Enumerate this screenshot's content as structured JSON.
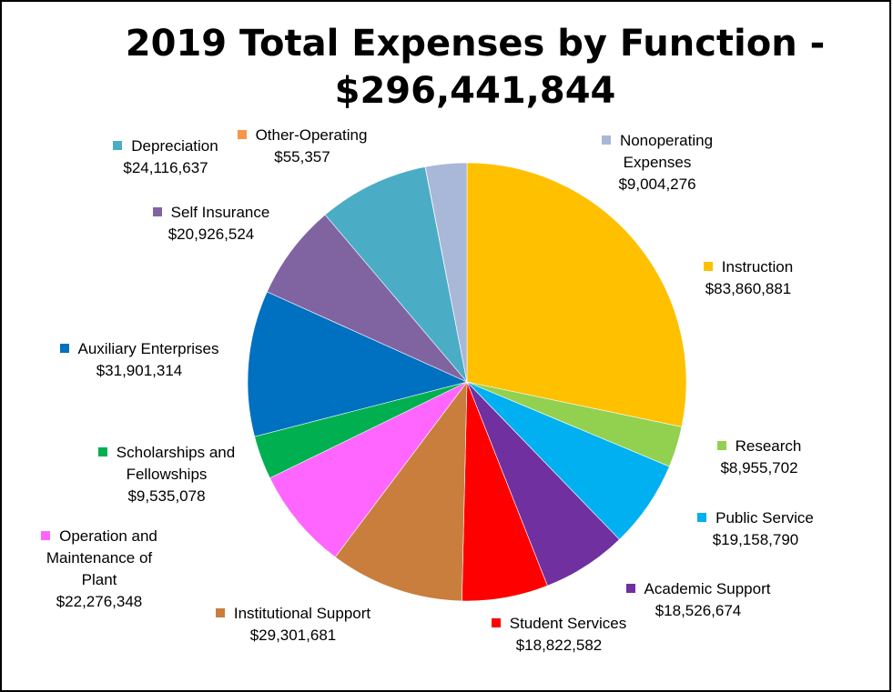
{
  "chart_data": {
    "type": "pie",
    "title_line1": "2019 Total Expenses by Function -",
    "title_line2": "$296,441,844",
    "start_angle_deg": 0,
    "direction": "clockwise",
    "slices": [
      {
        "name": "Instruction",
        "value": 83860881,
        "value_label": "$83,860,881",
        "color": "#FFC000"
      },
      {
        "name": "Research",
        "value": 8955702,
        "value_label": "$8,955,702",
        "color": "#92D050"
      },
      {
        "name": "Public Service",
        "value": 19158790,
        "value_label": "$19,158,790",
        "color": "#00B0F0"
      },
      {
        "name": "Academic Support",
        "value": 18526674,
        "value_label": "$18,526,674",
        "color": "#7030A0"
      },
      {
        "name": "Student Services",
        "value": 18822582,
        "value_label": "$18,822,582",
        "color": "#FF0000"
      },
      {
        "name": "Institutional Support",
        "value": 29301681,
        "value_label": "$29,301,681",
        "color": "#C97E3E"
      },
      {
        "name": "Operation and Maintenance of Plant",
        "value": 22276348,
        "value_label": "$22,276,348",
        "color": "#FF66FF"
      },
      {
        "name": "Scholarships and Fellowships",
        "value": 9535078,
        "value_label": "$9,535,078",
        "color": "#00B050"
      },
      {
        "name": "Auxiliary Enterprises",
        "value": 31901314,
        "value_label": "$31,901,314",
        "color": "#0070C0"
      },
      {
        "name": "Self Insurance",
        "value": 20926524,
        "value_label": "$20,926,524",
        "color": "#8064A2"
      },
      {
        "name": "Depreciation",
        "value": 24116637,
        "value_label": "$24,116,637",
        "color": "#4BACC6"
      },
      {
        "name": "Other-Operating",
        "value": 55357,
        "value_label": "$55,357",
        "color": "#F79646"
      },
      {
        "name": "Nonoperating Expenses",
        "value": 9004276,
        "value_label": "$9,004,276",
        "color": "#A9B7D8"
      }
    ]
  }
}
